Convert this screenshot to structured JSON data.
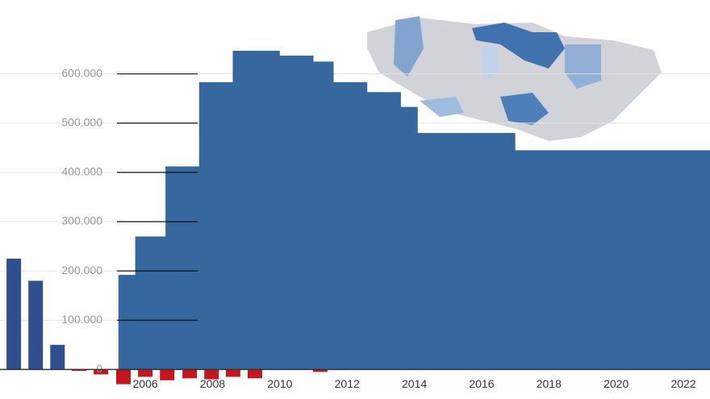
{
  "chart_data": {
    "type": "bar-step",
    "xlim": [
      2001.68,
      2022.79
    ],
    "ylim": [
      -60000,
      750000
    ],
    "yticks": [
      {
        "value": 0,
        "label": "0"
      },
      {
        "value": 100000,
        "label": "100.000"
      },
      {
        "value": 200000,
        "label": "200.000"
      },
      {
        "value": 300000,
        "label": "300.000"
      },
      {
        "value": 400000,
        "label": "400.000"
      },
      {
        "value": 500000,
        "label": "500.000"
      },
      {
        "value": 600000,
        "label": "600.000"
      }
    ],
    "xticks": [
      2006,
      2008,
      2010,
      2012,
      2014,
      2016,
      2018,
      2020,
      2022
    ],
    "grid": true,
    "series": [
      {
        "kind": "step-area",
        "color": "#2c5f9a",
        "x": [
          2005.2,
          2005.7,
          2006.6,
          2007.6,
          2008.6,
          2010.0,
          2011.0,
          2011.6,
          2012.6,
          2013.6,
          2014.1,
          2017.0
        ],
        "values": [
          192000,
          270000,
          412000,
          583000,
          647000,
          637000,
          625000,
          583000,
          563000,
          533000,
          480000,
          445000
        ]
      },
      {
        "kind": "bars",
        "color": "#2f4f8f",
        "negative_color": "#c4161c",
        "x": [
          2002.09,
          2002.74,
          2003.39,
          2004.03,
          2004.68,
          2005.35,
          2006.0,
          2006.65,
          2007.32,
          2007.97,
          2008.61,
          2009.26,
          2011.2
        ],
        "values": [
          225000,
          180000,
          50000,
          -3000,
          -10000,
          -30000,
          -15000,
          -22000,
          -18000,
          -20000,
          -15000,
          -18000,
          -5000
        ]
      }
    ]
  }
}
